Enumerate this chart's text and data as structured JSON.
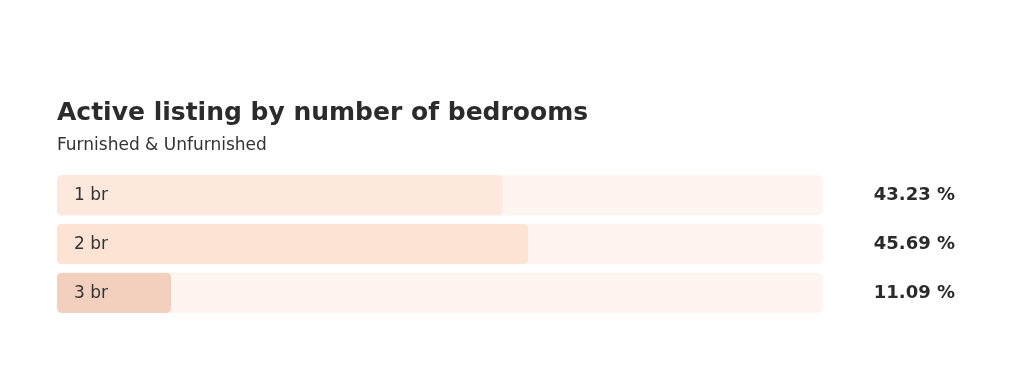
{
  "chart_data": {
    "type": "bar",
    "orientation": "horizontal",
    "title": "Active listing by number of bedrooms",
    "subtitle": "Furnished & Unfurnished",
    "categories": [
      "1 br",
      "2 br",
      "3 br"
    ],
    "values": [
      43.23,
      45.69,
      11.09
    ],
    "colors": [
      "#fce8dc",
      "#fde3d4",
      "#f3cfbd"
    ],
    "value_labels": [
      "43.23 %",
      "45.69 %",
      "11.09 %"
    ],
    "tick_labels": false
  }
}
